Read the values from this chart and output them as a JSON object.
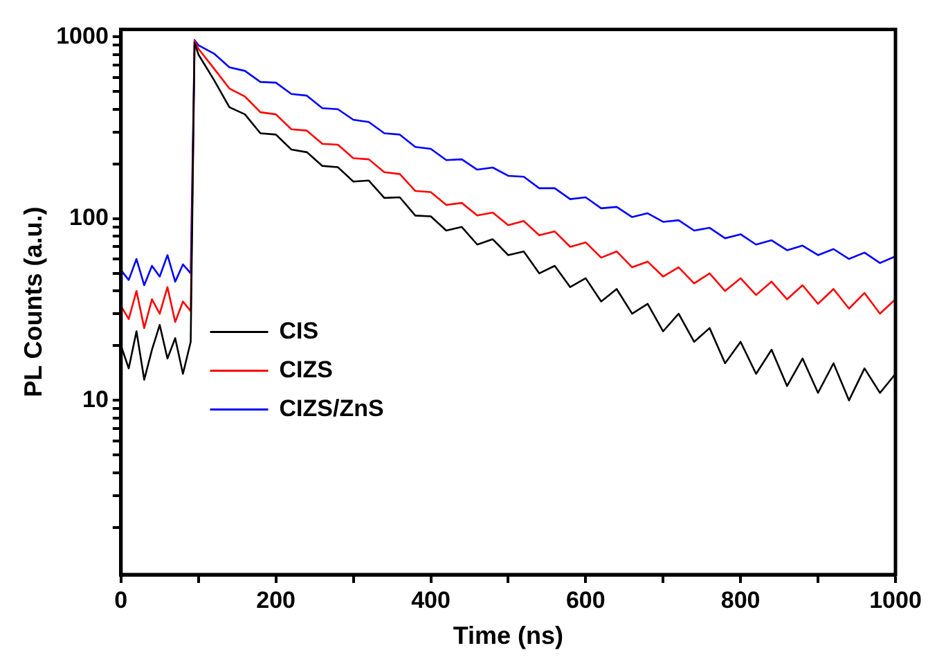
{
  "chart_data": {
    "type": "line",
    "xlabel": "Time (ns)",
    "ylabel": "PL Counts (a.u.)",
    "log": "y",
    "legend": "left",
    "marker": "none",
    "xlim": [
      0,
      1000
    ],
    "xticks": [
      0,
      {
        "value": 100,
        "label": null
      },
      200,
      {
        "value": 300,
        "label": null
      },
      400,
      {
        "value": 500,
        "label": null
      },
      600,
      {
        "value": 700,
        "label": null
      },
      800,
      {
        "value": 900,
        "label": null
      },
      1000
    ],
    "ylim": [
      1.1,
      1100
    ],
    "yticks": [
      {
        "value": 2,
        "label": null
      },
      {
        "value": 3,
        "label": null
      },
      {
        "value": 4,
        "label": null
      },
      {
        "value": 5,
        "label": null
      },
      {
        "value": 6,
        "label": null
      },
      {
        "value": 7,
        "label": null
      },
      {
        "value": 8,
        "label": null
      },
      {
        "value": 9,
        "label": null
      },
      10,
      {
        "value": 20,
        "label": null
      },
      {
        "value": 30,
        "label": null
      },
      {
        "value": 40,
        "label": null
      },
      {
        "value": 50,
        "label": null
      },
      {
        "value": 60,
        "label": null
      },
      {
        "value": 70,
        "label": null
      },
      {
        "value": 80,
        "label": null
      },
      {
        "value": 90,
        "label": null
      },
      100,
      {
        "value": 200,
        "label": null
      },
      {
        "value": 300,
        "label": null
      },
      {
        "value": 400,
        "label": null
      },
      {
        "value": 500,
        "label": null
      },
      {
        "value": 600,
        "label": null
      },
      {
        "value": 700,
        "label": null
      },
      {
        "value": 800,
        "label": null
      },
      {
        "value": 900,
        "label": null
      },
      1000
    ],
    "x": [
      0,
      10,
      20,
      30,
      40,
      50,
      60,
      70,
      80,
      90,
      95,
      100,
      120,
      140,
      160,
      180,
      200,
      220,
      240,
      260,
      280,
      300,
      320,
      340,
      360,
      380,
      400,
      420,
      440,
      460,
      480,
      500,
      520,
      540,
      560,
      580,
      600,
      620,
      640,
      660,
      680,
      700,
      720,
      740,
      760,
      780,
      800,
      820,
      840,
      860,
      880,
      900,
      920,
      940,
      960,
      980,
      1000
    ],
    "series": [
      {
        "name": "CIS",
        "color": "#000000",
        "values": [
          20,
          15,
          24,
          13,
          19,
          26,
          17,
          22,
          14,
          21,
          930,
          800,
          580,
          410,
          375,
          295,
          290,
          240,
          232,
          195,
          192,
          160,
          162,
          130,
          131,
          104,
          103,
          86,
          90,
          72,
          77,
          63,
          66,
          50,
          55,
          42,
          47,
          35,
          41,
          30,
          34,
          24,
          30,
          21,
          25,
          16,
          21,
          14,
          19,
          12,
          17,
          11,
          16,
          10,
          15,
          11,
          14
        ]
      },
      {
        "name": "CIZS",
        "color": "#ff0000",
        "values": [
          33,
          28,
          40,
          25,
          36,
          30,
          42,
          27,
          35,
          31,
          950,
          860,
          670,
          520,
          470,
          385,
          375,
          310,
          305,
          258,
          255,
          215,
          212,
          180,
          176,
          142,
          140,
          119,
          122,
          104,
          108,
          92,
          97,
          81,
          85,
          70,
          74,
          61,
          66,
          54,
          58,
          48,
          54,
          44,
          50,
          40,
          47,
          38,
          45,
          36,
          43,
          34,
          41,
          32,
          39,
          30,
          36
        ]
      },
      {
        "name": "CIZS/ZnS",
        "color": "#0000ff",
        "values": [
          52,
          46,
          60,
          43,
          55,
          48,
          63,
          45,
          56,
          50,
          960,
          900,
          810,
          680,
          650,
          565,
          560,
          485,
          475,
          405,
          400,
          350,
          340,
          295,
          290,
          248,
          242,
          210,
          212,
          186,
          191,
          172,
          170,
          147,
          147,
          128,
          131,
          114,
          116,
          102,
          107,
          96,
          98,
          86,
          89,
          78,
          82,
          72,
          76,
          67,
          71,
          63,
          68,
          60,
          65,
          57,
          62
        ]
      }
    ]
  }
}
